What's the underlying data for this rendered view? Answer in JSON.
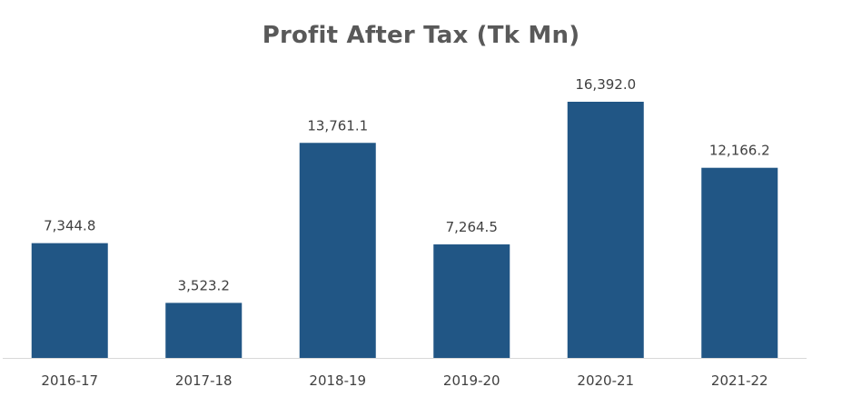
{
  "chart_data": {
    "type": "bar",
    "title": "Profit After Tax (Tk Mn)",
    "categories": [
      "2016-17",
      "2017-18",
      "2018-19",
      "2019-20",
      "2020-21",
      "2021-22"
    ],
    "values": [
      7344.8,
      3523.2,
      13761.1,
      7264.5,
      16392.0,
      12166.2
    ],
    "data_labels": [
      "7,344.8",
      "3,523.2",
      "13,761.1",
      "7,264.5",
      "16,392.0",
      "12,166.2"
    ],
    "xlabel": "",
    "ylabel": "",
    "ylim": [
      0,
      18000
    ],
    "grid": false,
    "legend": "none",
    "bar_color": "#215685",
    "axis_color": "#d9d9d9",
    "text_color": "#404040",
    "title_color": "#595959"
  }
}
